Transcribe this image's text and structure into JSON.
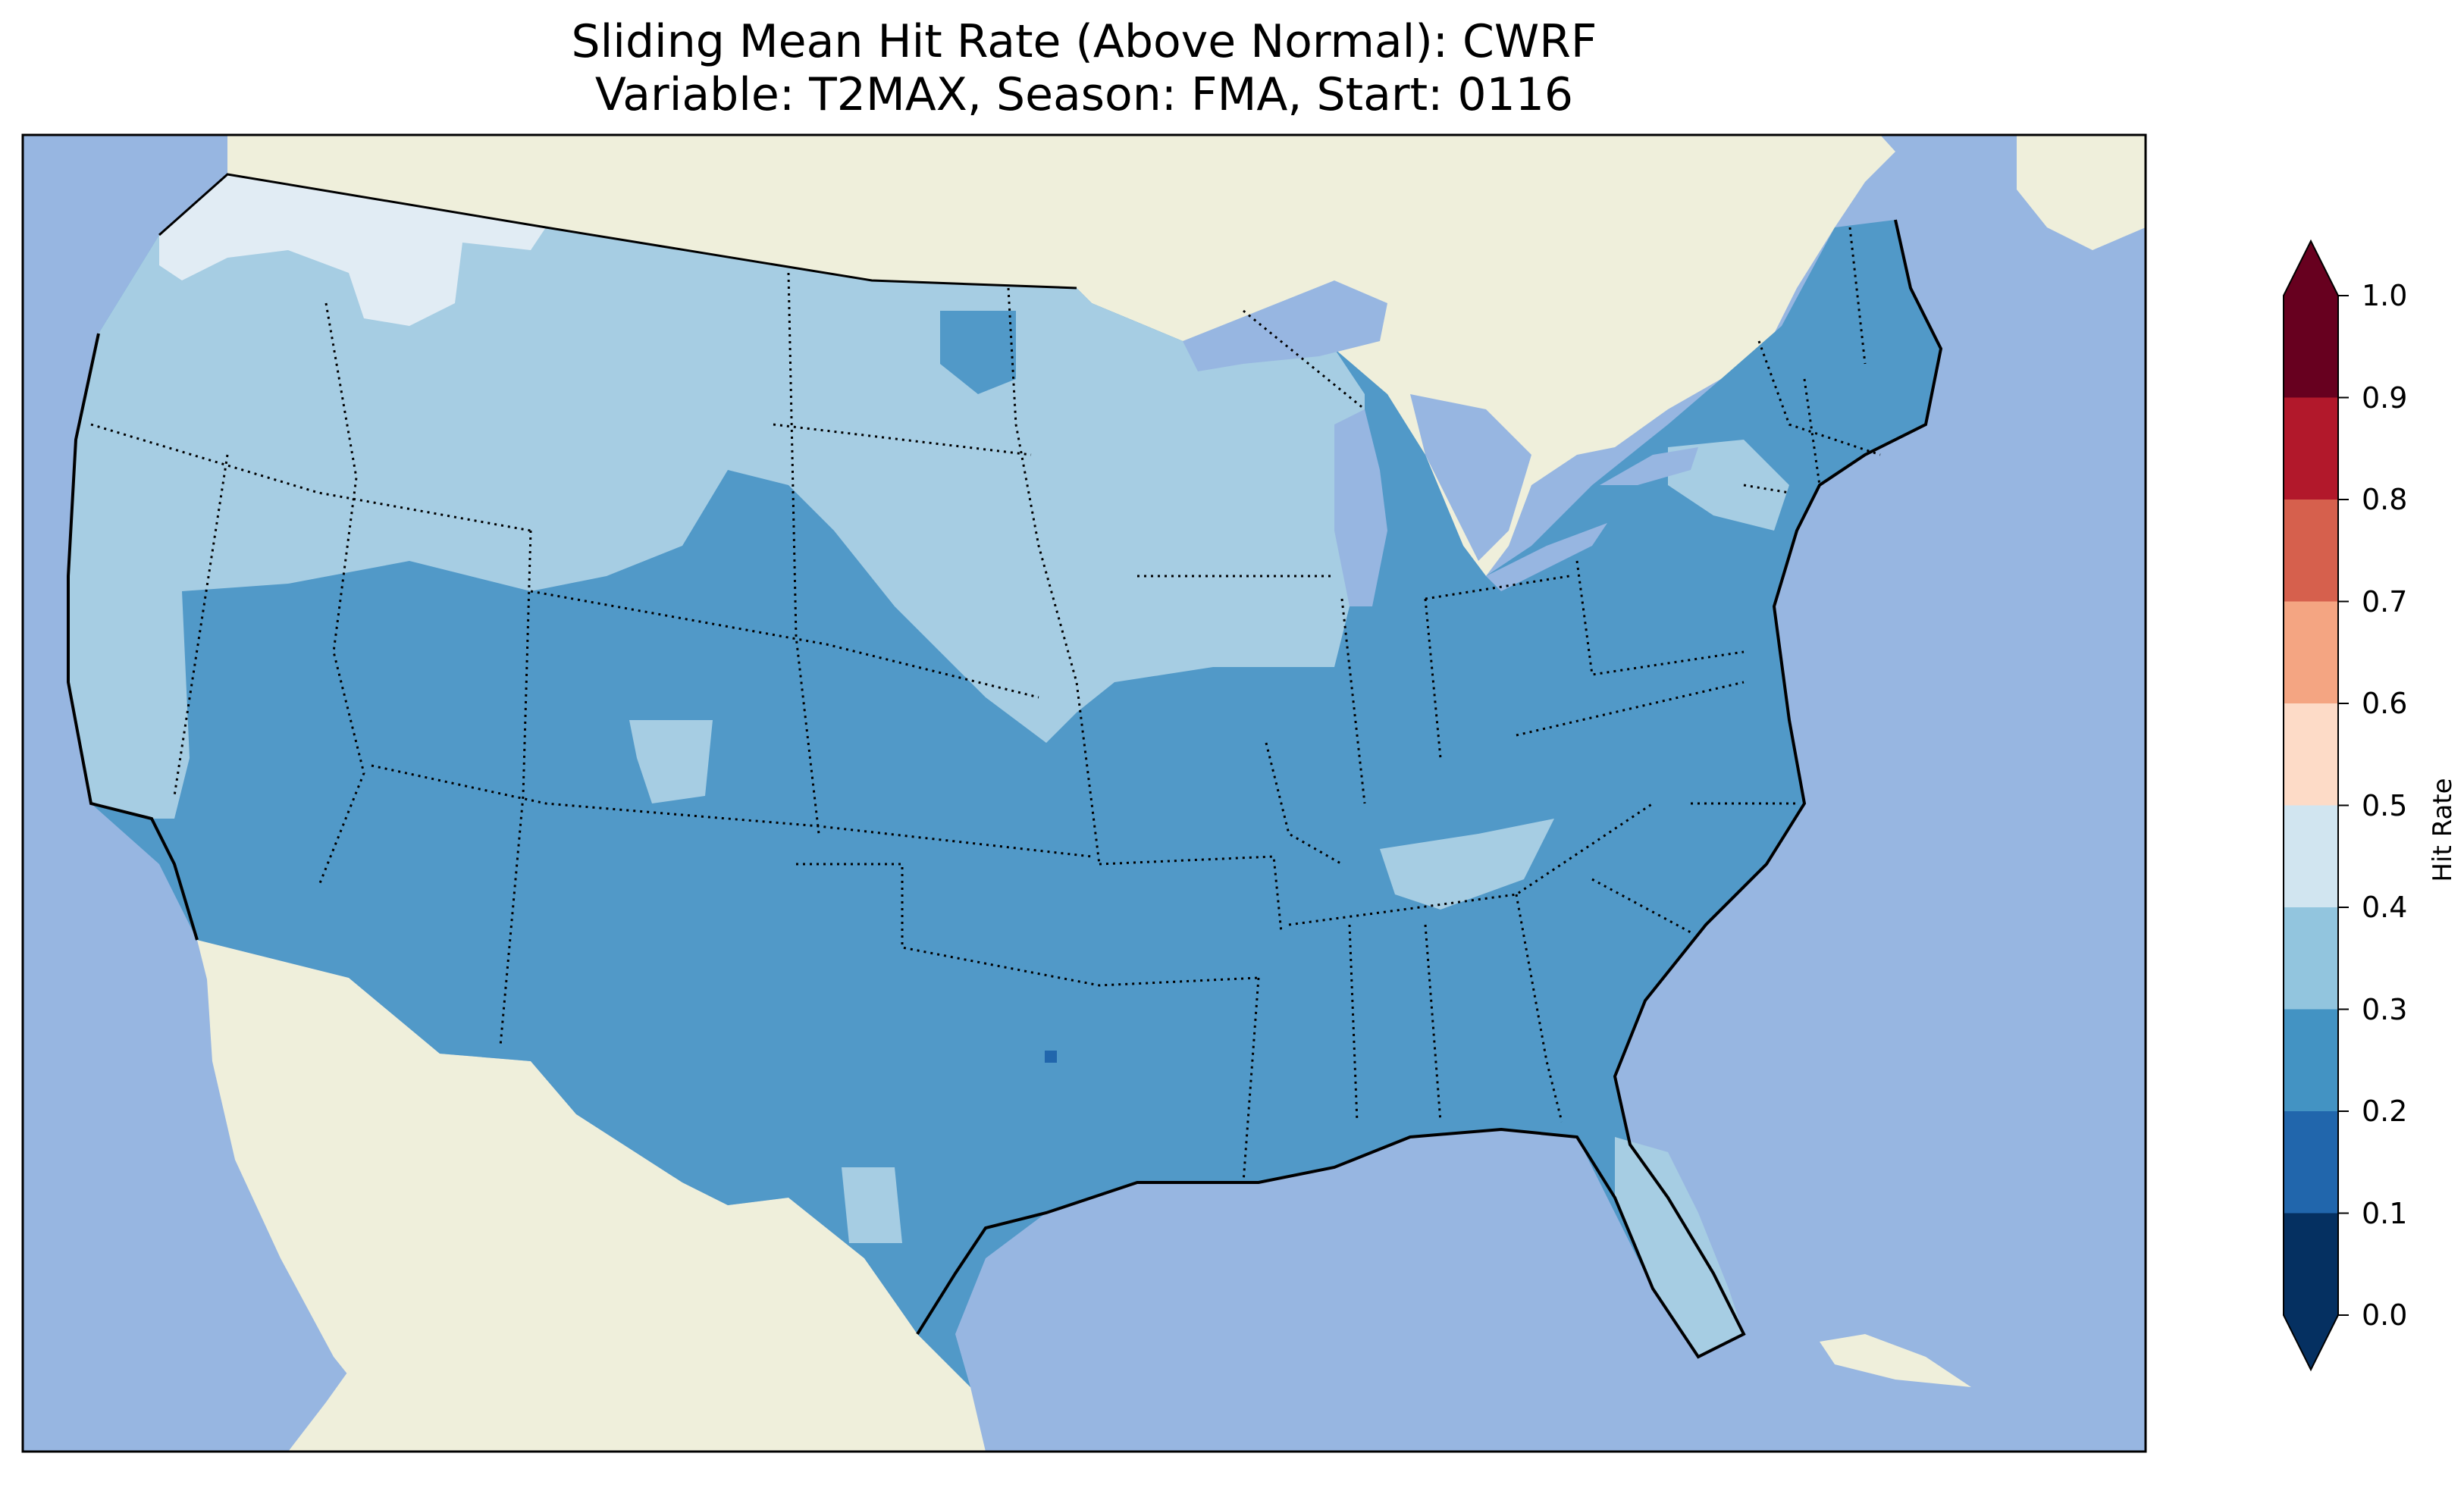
{
  "title_line1": "Sliding Mean Hit Rate (Above Normal): CWRF",
  "title_line2": "Variable: T2MAX, Season: FMA, Start: 0116",
  "colors": {
    "ocean": "#97b6e1",
    "land": "#efefdb",
    "lake": "#97b6e1"
  },
  "colorbar": {
    "label": "Hit Rate",
    "ticks": [
      "0.0",
      "0.1",
      "0.2",
      "0.3",
      "0.4",
      "0.5",
      "0.6",
      "0.7",
      "0.8",
      "0.9",
      "1.0"
    ],
    "colors": [
      "#053061",
      "#2166ac",
      "#4393c3",
      "#92c5de",
      "#d1e5f0",
      "#f7f7f7",
      "#fddbc7",
      "#f4a582",
      "#d6604d",
      "#b2182b",
      "#67001f"
    ],
    "under_color": "#053061",
    "over_color": "#67001f"
  },
  "map_regions": [
    {
      "name": "Pacific Northwest",
      "hit_rate_bin": "0.3-0.4",
      "color": "#a6cde3"
    },
    {
      "name": "Northern Idaho/Montana border",
      "hit_rate_bin": "0.4-0.5",
      "color": "#e1ecf4"
    },
    {
      "name": "Northern Plains",
      "hit_rate_bin": "0.3-0.4",
      "color": "#a6cde3"
    },
    {
      "name": "Upper Midwest",
      "hit_rate_bin": "0.3-0.4",
      "color": "#a6cde3"
    },
    {
      "name": "Florida peninsula",
      "hit_rate_bin": "0.3-0.4",
      "color": "#a6cde3"
    },
    {
      "name": "Southwest, South, Southeast, Northeast",
      "hit_rate_bin": "0.2-0.3",
      "color": "#5199c8"
    },
    {
      "name": "Central Texas pixel",
      "hit_rate_bin": "0.1-0.2",
      "color": "#2166ac"
    }
  ]
}
